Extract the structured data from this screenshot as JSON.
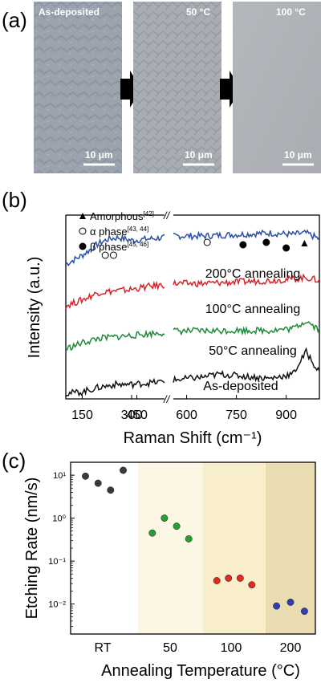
{
  "panel_a": {
    "label": "(a)",
    "images": [
      {
        "title": "As-deposited",
        "scalebar": "10 μm"
      },
      {
        "title": "50 °C",
        "scalebar": "10 μm"
      },
      {
        "title": "100 °C",
        "scalebar": "10 μm"
      }
    ]
  },
  "chart_data": [
    {
      "type": "line",
      "panel_label": "(b)",
      "xlabel": "Raman Shift (cm⁻¹)",
      "ylabel": "Intensity (a.u.)",
      "x_segments": [
        [
          100,
          400
        ],
        [
          560,
          1000
        ]
      ],
      "xticks": [
        150,
        300,
        450,
        600,
        750,
        900
      ],
      "axis_break": "//",
      "legend": [
        {
          "marker": "triangle",
          "label": "Amorphous",
          "ref": "[42]"
        },
        {
          "marker": "open-circle",
          "label": "α phase",
          "ref": "[43, 44]"
        },
        {
          "marker": "filled-circle",
          "label": "β phase",
          "ref": "[45, 46]"
        }
      ],
      "series": [
        {
          "name": "200°C annealing",
          "color": "#2b4fa8",
          "offset": 3.0,
          "x": [
            100,
            150,
            200,
            230,
            260,
            300,
            350,
            400,
            560,
            650,
            750,
            850,
            920,
            960,
            1000
          ],
          "y": [
            0.05,
            0.35,
            0.75,
            0.9,
            0.95,
            0.85,
            0.9,
            0.95,
            1.0,
            1.0,
            1.05,
            1.1,
            1.05,
            1.1,
            0.9
          ]
        },
        {
          "name": "100°C annealing",
          "color": "#d8232a",
          "offset": 2.0,
          "x": [
            100,
            150,
            200,
            250,
            300,
            350,
            400,
            560,
            650,
            750,
            850,
            920,
            960,
            1000
          ],
          "y": [
            0.1,
            0.3,
            0.55,
            0.6,
            0.65,
            0.75,
            0.8,
            0.85,
            0.85,
            0.9,
            0.95,
            1.0,
            1.05,
            0.95
          ]
        },
        {
          "name": "50°C annealing",
          "color": "#1f8a3a",
          "offset": 1.0,
          "x": [
            100,
            150,
            200,
            250,
            300,
            350,
            400,
            560,
            650,
            750,
            850,
            920,
            960,
            1000
          ],
          "y": [
            0.1,
            0.3,
            0.45,
            0.5,
            0.55,
            0.6,
            0.65,
            0.7,
            0.7,
            0.72,
            0.72,
            0.78,
            1.05,
            0.75
          ]
        },
        {
          "name": "As-deposited",
          "color": "#111111",
          "offset": 0.0,
          "x": [
            100,
            150,
            200,
            250,
            300,
            350,
            400,
            560,
            650,
            700,
            750,
            850,
            920,
            960,
            1000
          ],
          "y": [
            0.05,
            0.1,
            0.25,
            0.35,
            0.35,
            0.4,
            0.45,
            0.5,
            0.6,
            0.7,
            0.65,
            0.55,
            0.7,
            1.45,
            0.75
          ]
        }
      ],
      "markers": [
        {
          "type": "open-circle",
          "x": 220
        },
        {
          "type": "open-circle",
          "x": 245
        },
        {
          "type": "open-circle",
          "x": 662
        },
        {
          "type": "filled-circle",
          "x": 770
        },
        {
          "type": "filled-circle",
          "x": 840
        },
        {
          "type": "filled-circle",
          "x": 900
        },
        {
          "type": "triangle",
          "x": 955
        }
      ]
    },
    {
      "type": "scatter",
      "panel_label": "(c)",
      "xlabel": "Annealing Temperature (°C)",
      "ylabel": "Etching Rate (nm/s)",
      "yscale": "log",
      "ylim": [
        0.002,
        20
      ],
      "yticks": [
        "10⁻²",
        "10⁻¹",
        "10⁰",
        "10¹"
      ],
      "categories": [
        "RT",
        "50",
        "100",
        "200"
      ],
      "groups": [
        {
          "name": "RT",
          "color": "#3a3a3a",
          "shade": "#ffffff",
          "values": [
            9.5,
            6.5,
            4.5,
            13
          ]
        },
        {
          "name": "50",
          "color": "#2a9a3a",
          "shade": "#fcf7e4",
          "values": [
            0.45,
            1.0,
            0.65,
            0.33
          ]
        },
        {
          "name": "100",
          "color": "#e02a20",
          "shade": "#f8eecb",
          "values": [
            0.035,
            0.04,
            0.04,
            0.028
          ]
        },
        {
          "name": "200",
          "color": "#2f3fb0",
          "shade": "#e8dcb0",
          "values": [
            0.009,
            0.011,
            0.0068
          ]
        }
      ]
    }
  ]
}
